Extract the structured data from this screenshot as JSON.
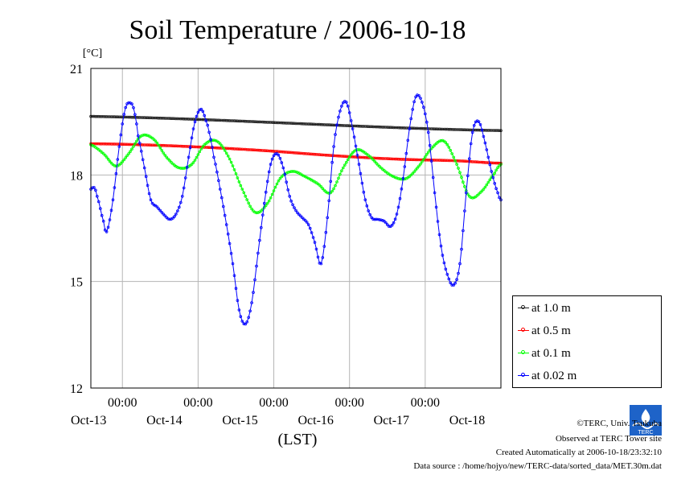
{
  "chart_data": {
    "type": "line",
    "title": "Soil Temperature / 2006-10-18",
    "ylabel": "[°C]",
    "xlabel": "(LST)",
    "ylim": [
      12,
      21
    ],
    "yticks": [
      12,
      15,
      18,
      21
    ],
    "x_unit": "hours since 2006-10-12 00:00 LST",
    "xlim": [
      14,
      144
    ],
    "xtick_hours": [
      24,
      48,
      72,
      96,
      120,
      144
    ],
    "xticks": [
      {
        "time": "00:00",
        "date": "Oct-13"
      },
      {
        "time": "00:00",
        "date": "Oct-14"
      },
      {
        "time": "00:00",
        "date": "Oct-15"
      },
      {
        "time": "00:00",
        "date": "Oct-16"
      },
      {
        "time": "00:00",
        "date": "Oct-17"
      },
      {
        "time": "",
        "date": "Oct-18"
      }
    ],
    "grid": true,
    "legend_position": "right-bottom",
    "series": [
      {
        "name": "at 1.0 m",
        "color": "#222222",
        "x": [
          14,
          144
        ],
        "y": [
          19.65,
          19.25
        ]
      },
      {
        "name": "at 0.5 m",
        "color": "#ff0000",
        "x": [
          14,
          30,
          50,
          70,
          90,
          110,
          130,
          144
        ],
        "y": [
          18.88,
          18.85,
          18.78,
          18.68,
          18.55,
          18.45,
          18.4,
          18.33
        ]
      },
      {
        "name": "at 0.1 m",
        "color": "#00ff00",
        "x": [
          14,
          18,
          22,
          26,
          30,
          34,
          38,
          42,
          46,
          50,
          54,
          58,
          62,
          66,
          70,
          74,
          78,
          82,
          86,
          90,
          94,
          98,
          102,
          106,
          110,
          114,
          118,
          122,
          126,
          130,
          134,
          138,
          142,
          144
        ],
        "y": [
          18.85,
          18.6,
          18.25,
          18.6,
          19.1,
          19.0,
          18.5,
          18.2,
          18.3,
          18.85,
          18.95,
          18.45,
          17.6,
          16.95,
          17.2,
          17.9,
          18.1,
          17.95,
          17.75,
          17.5,
          18.2,
          18.7,
          18.55,
          18.2,
          17.95,
          17.9,
          18.25,
          18.75,
          18.95,
          18.3,
          17.4,
          17.55,
          18.05,
          18.3
        ]
      },
      {
        "name": "at 0.02 m",
        "color": "#0000ff",
        "x": [
          14,
          15,
          16,
          18,
          19,
          21,
          23,
          25,
          27,
          28,
          29,
          31,
          33,
          35,
          37,
          39,
          41,
          43,
          45,
          47,
          49,
          51,
          52,
          53,
          55,
          57,
          59,
          61,
          63,
          65,
          67,
          69,
          71,
          73,
          75,
          77,
          79,
          81,
          83,
          85,
          87,
          89,
          91,
          93,
          95,
          97,
          99,
          101,
          103,
          105,
          107,
          109,
          111,
          113,
          115,
          117,
          119,
          121,
          123,
          125,
          127,
          129,
          131,
          133,
          135,
          137,
          139,
          141,
          143,
          144
        ],
        "y": [
          17.6,
          17.65,
          17.4,
          16.7,
          16.4,
          17.3,
          18.8,
          19.9,
          20.0,
          19.7,
          19.1,
          18.2,
          17.3,
          17.1,
          16.9,
          16.75,
          16.9,
          17.4,
          18.5,
          19.5,
          19.85,
          19.4,
          19.0,
          18.5,
          17.6,
          16.6,
          15.5,
          14.2,
          13.8,
          14.4,
          15.8,
          17.2,
          18.3,
          18.6,
          18.2,
          17.4,
          17.0,
          16.8,
          16.6,
          16.1,
          15.5,
          16.8,
          18.8,
          19.8,
          20.05,
          19.3,
          18.3,
          17.3,
          16.8,
          16.75,
          16.7,
          16.55,
          16.9,
          17.9,
          19.3,
          20.2,
          20.05,
          19.2,
          17.5,
          16.0,
          15.2,
          14.9,
          15.5,
          17.5,
          19.2,
          19.5,
          18.9,
          18.1,
          17.5,
          17.3
        ]
      }
    ]
  },
  "footer": {
    "copyright": "©TERC, Univ. Tsukuba",
    "observed": "Observed at TERC Tower site",
    "created": "Created Automatically at 2006-10-18/23:32:10",
    "source": "Data source : /home/hojyo/new/TERC-data/sorted_data/MET.30m.dat"
  },
  "logo": {
    "text": "TERC",
    "color": "#1e63c8"
  }
}
